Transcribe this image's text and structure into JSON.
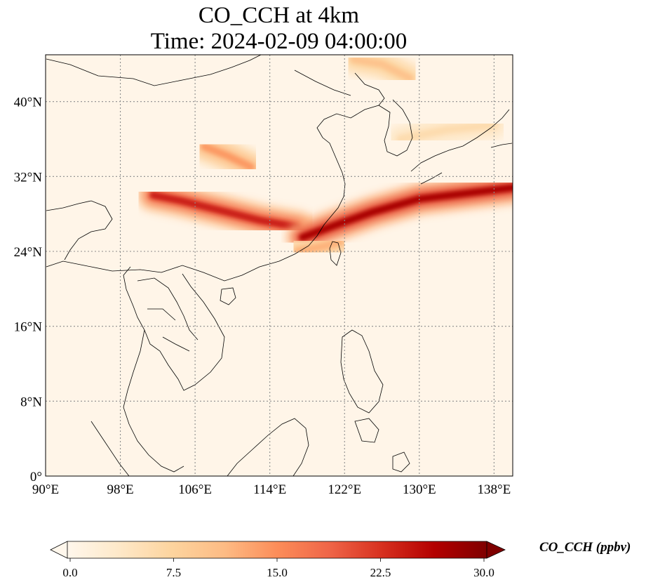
{
  "title": {
    "line1": "CO_CCH at 4km",
    "line2": "Time: 2024-02-09 04:00:00"
  },
  "map": {
    "lon_range": [
      90,
      140
    ],
    "lat_range": [
      0,
      45
    ],
    "lon_ticks": [
      {
        "value": 90,
        "label": "90°E"
      },
      {
        "value": 98,
        "label": "98°E"
      },
      {
        "value": 106,
        "label": "106°E"
      },
      {
        "value": 114,
        "label": "114°E"
      },
      {
        "value": 122,
        "label": "122°E"
      },
      {
        "value": 130,
        "label": "130°E"
      },
      {
        "value": 138,
        "label": "138°E"
      }
    ],
    "lat_ticks": [
      {
        "value": 0,
        "label": "0°"
      },
      {
        "value": 8,
        "label": "8°N"
      },
      {
        "value": 16,
        "label": "16°N"
      },
      {
        "value": 24,
        "label": "24°N"
      },
      {
        "value": 32,
        "label": "32°N"
      },
      {
        "value": 40,
        "label": "40°N"
      }
    ],
    "gridlines": true,
    "colormap": "OrRd",
    "plumes": [
      {
        "points": [
          [
            101.5,
            30.0
          ],
          [
            104.5,
            29.4
          ],
          [
            109,
            28.3
          ],
          [
            113,
            27.3
          ],
          [
            117,
            26.6
          ]
        ],
        "value": 24
      },
      {
        "points": [
          [
            117.5,
            25.5
          ],
          [
            121,
            26.8
          ],
          [
            125,
            28.2
          ],
          [
            130,
            29.6
          ],
          [
            135,
            30.2
          ],
          [
            140,
            30.8
          ]
        ],
        "value": 27
      },
      {
        "points": [
          [
            107,
            35.2
          ],
          [
            109.5,
            34.2
          ],
          [
            112,
            33.0
          ]
        ],
        "value": 14
      },
      {
        "points": [
          [
            117,
            24.0
          ],
          [
            120,
            24.6
          ],
          [
            121.5,
            25.0
          ]
        ],
        "value": 12
      },
      {
        "points": [
          [
            123,
            44.5
          ],
          [
            126,
            44.0
          ],
          [
            129,
            42.5
          ]
        ],
        "value": 10
      },
      {
        "points": [
          [
            128,
            36
          ],
          [
            133,
            37
          ],
          [
            138,
            37.5
          ]
        ],
        "value": 6
      }
    ]
  },
  "colorbar": {
    "min": 0.0,
    "max": 30.0,
    "ticks": [
      "0.0",
      "7.5",
      "15.0",
      "22.5",
      "30.0"
    ],
    "label": "CO_CCH (ppbv)",
    "stops": [
      "#fff7ec",
      "#fee8c8",
      "#fdd49e",
      "#fdbb84",
      "#fc8d59",
      "#ef6548",
      "#d7301f",
      "#b30000",
      "#7f0000"
    ]
  }
}
